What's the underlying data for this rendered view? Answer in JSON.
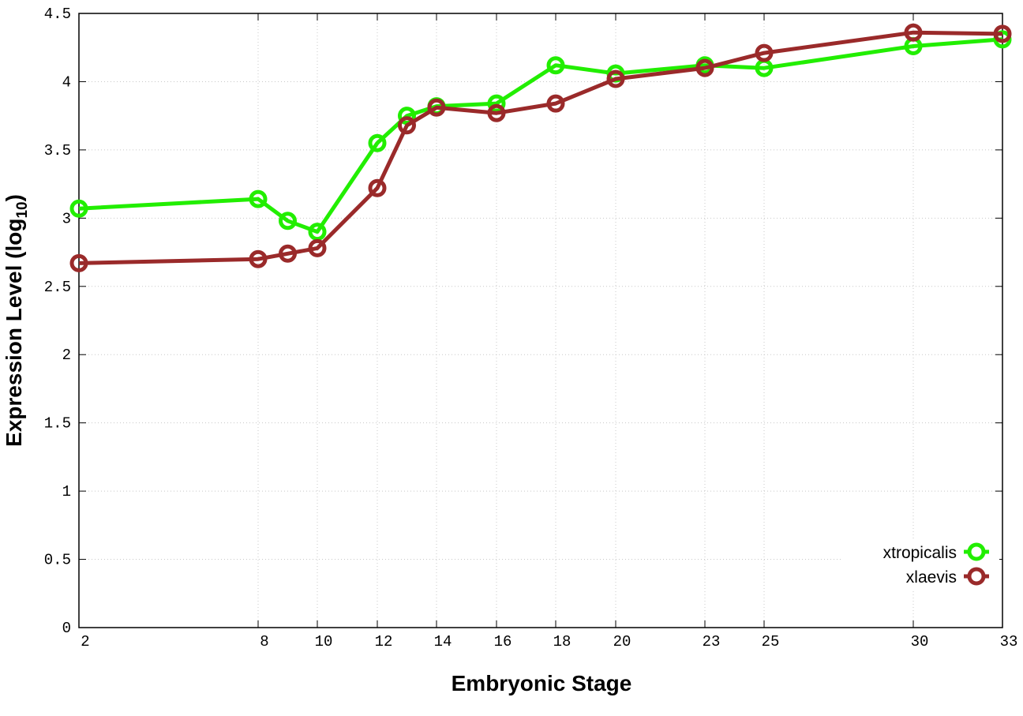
{
  "chart_data": {
    "type": "line",
    "xlabel": "Embryonic Stage",
    "ylabel_main": "Expression Level (log",
    "ylabel_sub": "10",
    "ylabel_close": ")",
    "x_axis_scale": "categorical-proportional",
    "x_ticks": [
      {
        "value": 2,
        "label": "2"
      },
      {
        "value": 8,
        "label": "8"
      },
      {
        "value": 10,
        "label": "10"
      },
      {
        "value": 12,
        "label": "12"
      },
      {
        "value": 14,
        "label": "14"
      },
      {
        "value": 16,
        "label": "16"
      },
      {
        "value": 18,
        "label": "18"
      },
      {
        "value": 20,
        "label": "20"
      },
      {
        "value": 23,
        "label": "23"
      },
      {
        "value": 25,
        "label": "25"
      },
      {
        "value": 30,
        "label": "30"
      },
      {
        "value": 33,
        "label": "33"
      }
    ],
    "y_ticks": [
      {
        "value": 0,
        "label": "0"
      },
      {
        "value": 0.5,
        "label": "0.5"
      },
      {
        "value": 1,
        "label": "1"
      },
      {
        "value": 1.5,
        "label": "1.5"
      },
      {
        "value": 2,
        "label": "2"
      },
      {
        "value": 2.5,
        "label": "2.5"
      },
      {
        "value": 3,
        "label": "3"
      },
      {
        "value": 3.5,
        "label": "3.5"
      },
      {
        "value": 4,
        "label": "4"
      },
      {
        "value": 4.5,
        "label": "4.5"
      }
    ],
    "ylim": [
      0,
      4.5
    ],
    "grid": true,
    "legend_position": "bottom-right",
    "series": [
      {
        "name": "xtropicalis",
        "color": "#22ee00",
        "points": [
          {
            "x": 2,
            "y": 3.07
          },
          {
            "x": 8,
            "y": 3.14
          },
          {
            "x": 9,
            "y": 2.98
          },
          {
            "x": 10,
            "y": 2.9
          },
          {
            "x": 12,
            "y": 3.55
          },
          {
            "x": 13,
            "y": 3.75
          },
          {
            "x": 14,
            "y": 3.82
          },
          {
            "x": 16,
            "y": 3.84
          },
          {
            "x": 18,
            "y": 4.12
          },
          {
            "x": 20,
            "y": 4.06
          },
          {
            "x": 23,
            "y": 4.12
          },
          {
            "x": 25,
            "y": 4.1
          },
          {
            "x": 30,
            "y": 4.26
          },
          {
            "x": 33,
            "y": 4.31
          }
        ]
      },
      {
        "name": "xlaevis",
        "color": "#9a2a2a",
        "points": [
          {
            "x": 2,
            "y": 2.67
          },
          {
            "x": 8,
            "y": 2.7
          },
          {
            "x": 9,
            "y": 2.74
          },
          {
            "x": 10,
            "y": 2.78
          },
          {
            "x": 12,
            "y": 3.22
          },
          {
            "x": 13,
            "y": 3.68
          },
          {
            "x": 14,
            "y": 3.81
          },
          {
            "x": 16,
            "y": 3.77
          },
          {
            "x": 18,
            "y": 3.84
          },
          {
            "x": 20,
            "y": 4.02
          },
          {
            "x": 23,
            "y": 4.1
          },
          {
            "x": 25,
            "y": 4.21
          },
          {
            "x": 30,
            "y": 4.36
          },
          {
            "x": 33,
            "y": 4.35
          }
        ]
      }
    ]
  }
}
